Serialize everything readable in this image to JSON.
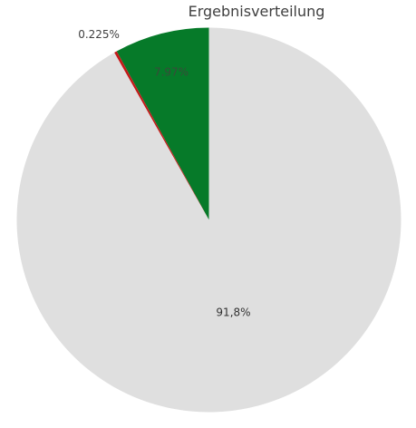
{
  "chart_data": {
    "type": "pie",
    "title": "Ergebnisverteilung",
    "start_angle_deg": 0,
    "direction": "counterclockwise",
    "slices": [
      {
        "name": "gruen",
        "value": 7.97,
        "label": "7.97%",
        "color": "#067a29",
        "label_color": "#3a4a3a"
      },
      {
        "name": "rot",
        "value": 0.225,
        "label": "0.225%",
        "color": "#c41a1a",
        "label_color": "#404040"
      },
      {
        "name": "grau",
        "value": 91.8,
        "label": "91,8%",
        "color": "#dfdfdf",
        "label_color": "#333333"
      }
    ]
  }
}
